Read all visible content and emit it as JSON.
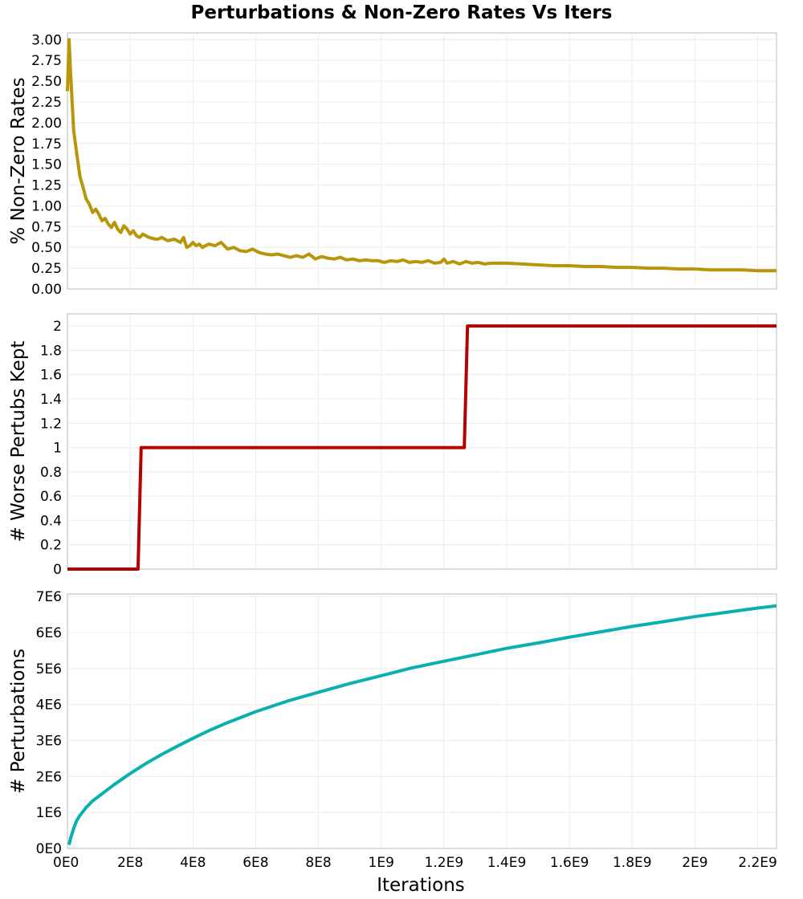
{
  "title": "Perturbations & Non-Zero Rates Vs Iters",
  "xlabel": "Iterations",
  "xlim": [
    0,
    2260000000
  ],
  "xticks": [
    0,
    200000000,
    400000000,
    600000000,
    800000000,
    1000000000,
    1200000000,
    1400000000,
    1600000000,
    1800000000,
    2000000000,
    2200000000
  ],
  "xtick_labels": [
    "0E0",
    "2E8",
    "4E8",
    "6E8",
    "8E8",
    "1E9",
    "1.2E9",
    "1.4E9",
    "1.6E9",
    "1.8E9",
    "2E9",
    "2.2E9"
  ],
  "chart_data": [
    {
      "type": "line",
      "ylabel": "% Non-Zero Rates",
      "ylim": [
        0,
        3.08
      ],
      "yticks": [
        0,
        0.25,
        0.5,
        0.75,
        1.0,
        1.25,
        1.5,
        1.75,
        2.0,
        2.25,
        2.5,
        2.75,
        3.0
      ],
      "ytick_labels": [
        "0.00",
        "0.25",
        "0.50",
        "0.75",
        "1.00",
        "1.25",
        "1.50",
        "1.75",
        "2.00",
        "2.25",
        "2.50",
        "2.75",
        "3.00"
      ],
      "grid": true,
      "color": "#b8960c",
      "x": [
        0,
        5000000,
        10000000,
        20000000,
        30000000,
        40000000,
        50000000,
        60000000,
        70000000,
        80000000,
        90000000,
        100000000,
        110000000,
        120000000,
        130000000,
        140000000,
        150000000,
        160000000,
        170000000,
        180000000,
        190000000,
        200000000,
        210000000,
        220000000,
        230000000,
        240000000,
        250000000,
        260000000,
        270000000,
        280000000,
        290000000,
        300000000,
        320000000,
        340000000,
        360000000,
        370000000,
        380000000,
        390000000,
        400000000,
        410000000,
        420000000,
        430000000,
        450000000,
        470000000,
        490000000,
        510000000,
        530000000,
        550000000,
        570000000,
        590000000,
        610000000,
        630000000,
        650000000,
        670000000,
        690000000,
        710000000,
        730000000,
        750000000,
        770000000,
        790000000,
        810000000,
        830000000,
        850000000,
        870000000,
        890000000,
        910000000,
        930000000,
        950000000,
        970000000,
        990000000,
        1010000000,
        1030000000,
        1050000000,
        1070000000,
        1090000000,
        1110000000,
        1130000000,
        1150000000,
        1170000000,
        1190000000,
        1200000000,
        1210000000,
        1230000000,
        1250000000,
        1270000000,
        1290000000,
        1310000000,
        1330000000,
        1350000000,
        1400000000,
        1450000000,
        1500000000,
        1550000000,
        1600000000,
        1650000000,
        1700000000,
        1750000000,
        1800000000,
        1850000000,
        1900000000,
        1950000000,
        2000000000,
        2050000000,
        2100000000,
        2150000000,
        2200000000,
        2260000000
      ],
      "y": [
        2.38,
        3.0,
        2.6,
        1.9,
        1.62,
        1.35,
        1.22,
        1.08,
        1.02,
        0.92,
        0.96,
        0.9,
        0.82,
        0.85,
        0.78,
        0.74,
        0.8,
        0.72,
        0.68,
        0.76,
        0.72,
        0.66,
        0.7,
        0.64,
        0.62,
        0.66,
        0.64,
        0.62,
        0.61,
        0.6,
        0.6,
        0.62,
        0.58,
        0.6,
        0.56,
        0.62,
        0.5,
        0.52,
        0.56,
        0.52,
        0.54,
        0.5,
        0.54,
        0.52,
        0.56,
        0.48,
        0.5,
        0.46,
        0.45,
        0.48,
        0.44,
        0.42,
        0.41,
        0.42,
        0.4,
        0.38,
        0.4,
        0.38,
        0.42,
        0.36,
        0.39,
        0.37,
        0.36,
        0.38,
        0.35,
        0.36,
        0.34,
        0.35,
        0.34,
        0.34,
        0.32,
        0.34,
        0.33,
        0.35,
        0.32,
        0.33,
        0.32,
        0.34,
        0.31,
        0.32,
        0.36,
        0.31,
        0.33,
        0.3,
        0.33,
        0.31,
        0.32,
        0.3,
        0.31,
        0.31,
        0.3,
        0.29,
        0.28,
        0.28,
        0.27,
        0.27,
        0.26,
        0.26,
        0.25,
        0.25,
        0.24,
        0.24,
        0.23,
        0.23,
        0.23,
        0.22,
        0.22
      ]
    },
    {
      "type": "line",
      "ylabel": "# Worse Pertubs Kept",
      "ylim": [
        0,
        2.1
      ],
      "yticks": [
        0,
        0.2,
        0.4,
        0.6,
        0.8,
        1,
        1.2,
        1.4,
        1.6,
        1.8,
        2
      ],
      "ytick_labels": [
        "0",
        "0.2",
        "0.4",
        "0.6",
        "0.8",
        "1",
        "1.2",
        "1.4",
        "1.6",
        "1.8",
        "2"
      ],
      "grid": true,
      "color": "#b30000",
      "x": [
        0,
        225000000,
        235000000,
        1265000000,
        1275000000,
        2260000000
      ],
      "y": [
        0,
        0,
        1,
        1,
        2,
        2
      ]
    },
    {
      "type": "line",
      "ylabel": "# Perturbations",
      "ylim": [
        0,
        7070000
      ],
      "yticks": [
        0,
        1000000,
        2000000,
        3000000,
        4000000,
        5000000,
        6000000,
        7000000
      ],
      "ytick_labels": [
        "0E0",
        "1E6",
        "2E6",
        "3E6",
        "4E6",
        "5E6",
        "6E6",
        "7E6"
      ],
      "grid": true,
      "color": "#0aafaf",
      "x": [
        5000000,
        10000000,
        20000000,
        30000000,
        40000000,
        60000000,
        80000000,
        100000000,
        150000000,
        200000000,
        250000000,
        300000000,
        350000000,
        400000000,
        450000000,
        500000000,
        600000000,
        700000000,
        800000000,
        900000000,
        1000000000,
        1100000000,
        1200000000,
        1300000000,
        1400000000,
        1500000000,
        1600000000,
        1700000000,
        1800000000,
        1900000000,
        2000000000,
        2100000000,
        2200000000,
        2260000000
      ],
      "y": [
        100000,
        280000,
        560000,
        780000,
        920000,
        1140000,
        1320000,
        1450000,
        1780000,
        2080000,
        2360000,
        2610000,
        2840000,
        3060000,
        3270000,
        3460000,
        3800000,
        4090000,
        4340000,
        4580000,
        4800000,
        5020000,
        5200000,
        5380000,
        5560000,
        5710000,
        5870000,
        6020000,
        6170000,
        6300000,
        6440000,
        6560000,
        6680000,
        6740000
      ]
    }
  ]
}
